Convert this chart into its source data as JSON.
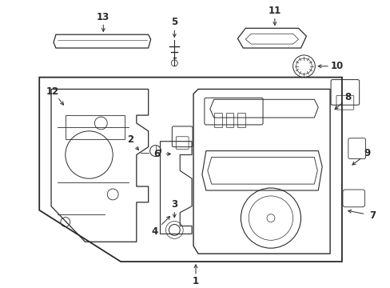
{
  "bg_color": "#ffffff",
  "lc": "#2a2a2a",
  "fig_width": 4.89,
  "fig_height": 3.6,
  "dpi": 100
}
